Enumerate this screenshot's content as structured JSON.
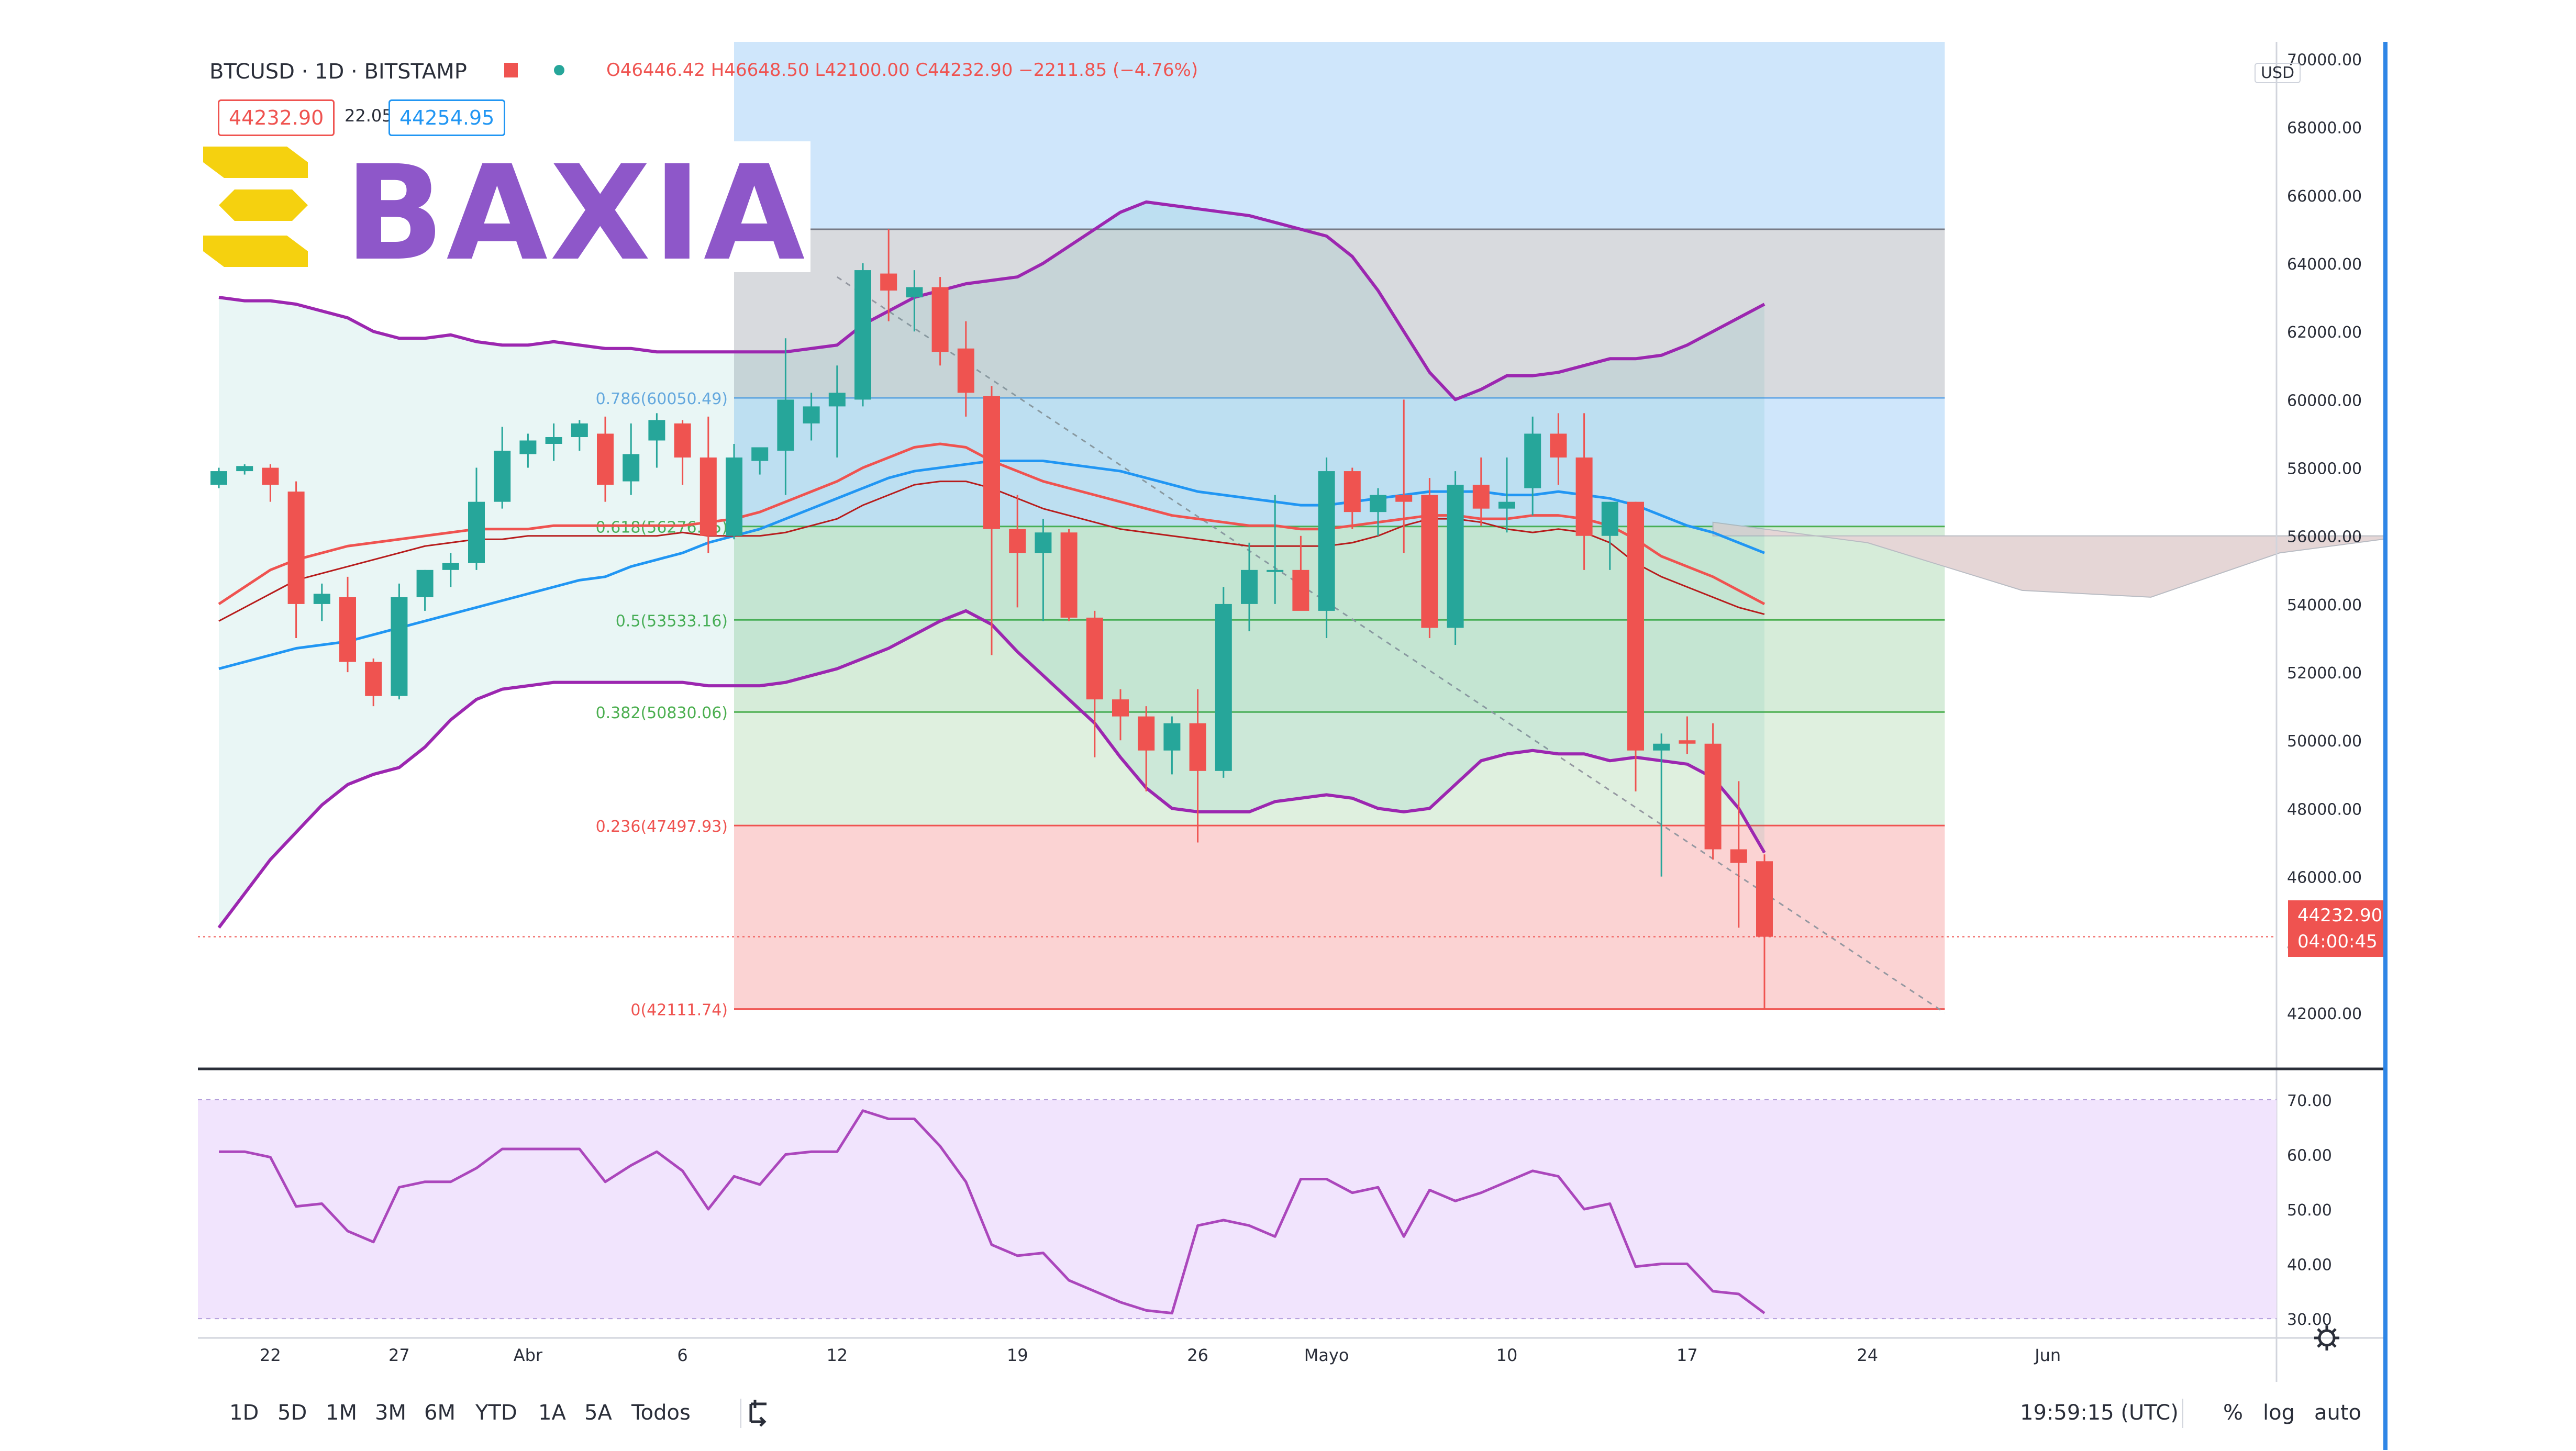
{
  "header": {
    "symbol": "BTCUSD · 1D · BITSTAMP",
    "ohlc": "O46446.42 H46648.50 L42100.00 C44232.90 −2211.85 (−4.76%)",
    "bid": "44232.90",
    "spread": "22.05",
    "ask": "44254.95",
    "currency": "USD"
  },
  "logo": {
    "text": "BAXIA",
    "colors": {
      "mark": "#f5d10f",
      "text": "#8e57c9"
    }
  },
  "price_badge": {
    "price": "44232.90",
    "countdown": "04:00:45"
  },
  "fib_labels": [
    "0.786(60050.49)",
    "0.618(56276.25)",
    "0.5(53533.16)",
    "0.382(50830.06)",
    "0.236(47497.93)",
    "0(42111.74)"
  ],
  "toolbar": {
    "ranges": [
      "1D",
      "5D",
      "1M",
      "3M",
      "6M",
      "YTD",
      "1A",
      "5A",
      "Todos"
    ],
    "clock": "19:59:15 (UTC)",
    "percent": "%",
    "log": "log",
    "auto": "auto"
  },
  "chart_data": [
    {
      "type": "candlestick",
      "title": "BTCUSD · 1D · BITSTAMP",
      "x_tick_labels": [
        "22",
        "27",
        "Abr",
        "6",
        "12",
        "19",
        "26",
        "Mayo",
        "10",
        "17",
        "24",
        "Jun"
      ],
      "y_tick_labels": [
        "70000.00",
        "68000.00",
        "66000.00",
        "64000.00",
        "62000.00",
        "60000.00",
        "58000.00",
        "56000.00",
        "54000.00",
        "52000.00",
        "50000.00",
        "48000.00",
        "46000.00",
        "44000.00",
        "42000.00"
      ],
      "ylim": [
        41000,
        70500
      ],
      "candles": [
        [
          57500,
          58000,
          57400,
          57900
        ],
        [
          57900,
          58100,
          57800,
          58050
        ],
        [
          58000,
          58100,
          57000,
          57500
        ],
        [
          57300,
          57600,
          53000,
          54000
        ],
        [
          54000,
          54600,
          53500,
          54300
        ],
        [
          54200,
          54800,
          52000,
          52300
        ],
        [
          52300,
          52400,
          51000,
          51300
        ],
        [
          51300,
          54600,
          51200,
          54200
        ],
        [
          54200,
          55000,
          53800,
          55000
        ],
        [
          55000,
          55500,
          54500,
          55200
        ],
        [
          55200,
          58000,
          55000,
          57000
        ],
        [
          57000,
          59200,
          56800,
          58500
        ],
        [
          58400,
          59000,
          58000,
          58800
        ],
        [
          58700,
          59300,
          58200,
          58900
        ],
        [
          58900,
          59400,
          58500,
          59300
        ],
        [
          59000,
          59500,
          57000,
          57500
        ],
        [
          57600,
          59300,
          57200,
          58400
        ],
        [
          58800,
          59600,
          58000,
          59400
        ],
        [
          59300,
          59400,
          57500,
          58300
        ],
        [
          58300,
          59500,
          55500,
          56000
        ],
        [
          56000,
          58700,
          55900,
          58300
        ],
        [
          58200,
          58600,
          57800,
          58600
        ],
        [
          58500,
          61800,
          57200,
          60000
        ],
        [
          59300,
          60200,
          58800,
          59800
        ],
        [
          59800,
          61000,
          58300,
          60200
        ],
        [
          60000,
          64000,
          59800,
          63800
        ],
        [
          63700,
          65000,
          62300,
          63200
        ],
        [
          63000,
          63800,
          62000,
          63300
        ],
        [
          63300,
          63600,
          61000,
          61400
        ],
        [
          61500,
          62300,
          59500,
          60200
        ],
        [
          60100,
          60400,
          52500,
          56200
        ],
        [
          56200,
          57200,
          53900,
          55500
        ],
        [
          55500,
          56500,
          53500,
          56100
        ],
        [
          56100,
          56200,
          53500,
          53600
        ],
        [
          53600,
          53800,
          49500,
          51200
        ],
        [
          51200,
          51500,
          50000,
          50700
        ],
        [
          50700,
          51000,
          48500,
          49700
        ],
        [
          49700,
          50700,
          49000,
          50500
        ],
        [
          50500,
          51500,
          47000,
          49100
        ],
        [
          49100,
          54500,
          48900,
          54000
        ],
        [
          54000,
          55800,
          53200,
          55000
        ],
        [
          55000,
          57200,
          54000,
          55000
        ],
        [
          55000,
          56000,
          54000,
          53800
        ],
        [
          53800,
          58300,
          53000,
          57900
        ],
        [
          57900,
          58000,
          56200,
          56700
        ],
        [
          56700,
          57400,
          56000,
          57200
        ],
        [
          57200,
          60000,
          55500,
          57000
        ],
        [
          57200,
          57700,
          53000,
          53300
        ],
        [
          53300,
          57900,
          52800,
          57500
        ],
        [
          57500,
          58300,
          56300,
          56800
        ],
        [
          56800,
          58300,
          56100,
          57000
        ],
        [
          57400,
          59500,
          56600,
          59000
        ],
        [
          59000,
          59600,
          57500,
          58300
        ],
        [
          58300,
          59600,
          55000,
          56000
        ],
        [
          56000,
          57000,
          55000,
          57000
        ],
        [
          57000,
          57000,
          48500,
          49700
        ],
        [
          49700,
          50200,
          46000,
          49900
        ],
        [
          50000,
          50700,
          49600,
          49900
        ],
        [
          49900,
          50500,
          46500,
          46800
        ],
        [
          46800,
          48800,
          44500,
          46400
        ],
        [
          46450,
          46650,
          42100,
          44233
        ]
      ],
      "fibonacci": {
        "levels": [
          {
            "label": "0.786(60050.49)",
            "price": 60050.49,
            "color": "#6ba9e6"
          },
          {
            "label": "0.618(56276.25)",
            "price": 56276.25,
            "color": "#4caf50"
          },
          {
            "label": "0.5(53533.16)",
            "price": 53533.16,
            "color": "#4caf50"
          },
          {
            "label": "0.382(50830.06)",
            "price": 50830.06,
            "color": "#4caf50"
          },
          {
            "label": "0.236(47497.93)",
            "price": 47497.93,
            "color": "#ef5350"
          },
          {
            "label": "0(42111.74)",
            "price": 42111.74,
            "color": "#ef5350"
          }
        ],
        "top": 65000,
        "sky_top": 70500
      },
      "bollinger": {
        "upper": [
          63000,
          62900,
          62900,
          62800,
          62600,
          62400,
          62000,
          61800,
          61800,
          61900,
          61700,
          61600,
          61600,
          61700,
          61600,
          61500,
          61500,
          61400,
          61400,
          61400,
          61400,
          61400,
          61400,
          61500,
          61600,
          62200,
          62600,
          63000,
          63200,
          63400,
          63500,
          63600,
          64000,
          64500,
          65000,
          65500,
          65800,
          65700,
          65600,
          65500,
          65400,
          65200,
          65000,
          64800,
          64200,
          63200,
          62000,
          60800,
          60000,
          60300,
          60700,
          60700,
          60800,
          61000,
          61200,
          61200,
          61300,
          61600,
          62000,
          62400,
          62800
        ],
        "middle": [
          54000,
          54500,
          55000,
          55300,
          55500,
          55700,
          55800,
          55900,
          56000,
          56100,
          56200,
          56200,
          56200,
          56300,
          56300,
          56300,
          56300,
          56300,
          56300,
          56400,
          56500,
          56700,
          57000,
          57300,
          57600,
          58000,
          58300,
          58600,
          58700,
          58600,
          58200,
          57900,
          57600,
          57400,
          57200,
          57000,
          56800,
          56600,
          56500,
          56400,
          56300,
          56300,
          56200,
          56200,
          56300,
          56400,
          56500,
          56600,
          56600,
          56500,
          56500,
          56600,
          56600,
          56500,
          56300,
          55900,
          55400,
          55100,
          54800,
          54400,
          54000
        ],
        "lower": [
          44500,
          45500,
          46500,
          47300,
          48100,
          48700,
          49000,
          49200,
          49800,
          50600,
          51200,
          51500,
          51600,
          51700,
          51700,
          51700,
          51700,
          51700,
          51700,
          51600,
          51600,
          51600,
          51700,
          51900,
          52100,
          52400,
          52700,
          53100,
          53500,
          53800,
          53400,
          52600,
          51900,
          51200,
          50500,
          49500,
          48600,
          48000,
          47900,
          47900,
          47900,
          48200,
          48300,
          48400,
          48300,
          48000,
          47900,
          48000,
          48700,
          49400,
          49600,
          49700,
          49600,
          49600,
          49400,
          49500,
          49400,
          49300,
          48900,
          48000,
          46700
        ]
      },
      "ema_blue": [
        52100,
        52300,
        52500,
        52700,
        52800,
        52900,
        53100,
        53300,
        53500,
        53700,
        53900,
        54100,
        54300,
        54500,
        54700,
        54800,
        55100,
        55300,
        55500,
        55800,
        56000,
        56200,
        56500,
        56800,
        57100,
        57400,
        57700,
        57900,
        58000,
        58100,
        58200,
        58200,
        58200,
        58100,
        58000,
        57900,
        57700,
        57500,
        57300,
        57200,
        57100,
        57000,
        56900,
        56900,
        57000,
        57100,
        57200,
        57300,
        57300,
        57300,
        57200,
        57200,
        57300,
        57200,
        57100,
        56900,
        56600,
        56300,
        56100,
        55800,
        55500
      ],
      "ema_red": [
        53800,
        54200,
        54600,
        55000,
        55200,
        55400,
        55600,
        55800,
        56000,
        56100,
        56200,
        56200,
        56300,
        56300,
        56300,
        56300,
        56300,
        56300,
        56400,
        56300,
        56300,
        56300,
        56400,
        56600,
        56800,
        57200,
        57500,
        57800,
        57900,
        57900,
        57700,
        57400,
        57100,
        56900,
        56700,
        56500,
        56400,
        56300,
        56200,
        56100,
        56000,
        56000,
        56000,
        56000,
        56100,
        56300,
        56600,
        56800,
        56800,
        56700,
        56500,
        56400,
        56500,
        56400,
        56100,
        55500,
        55100,
        54800,
        54500,
        54200,
        54000
      ],
      "rsi": {
        "type": "line",
        "y_tick_labels": [
          "70.00",
          "60.00",
          "50.00",
          "40.00",
          "30.00"
        ],
        "ylim": [
          28,
          72
        ],
        "values": [
          60.5,
          60.5,
          59.5,
          50.5,
          51,
          46,
          44,
          54,
          55,
          55,
          57.5,
          61,
          61,
          61,
          61,
          55,
          58,
          60.5,
          57,
          50,
          56,
          54.5,
          60,
          60.5,
          60.5,
          68,
          66.5,
          66.5,
          61.5,
          55,
          43.5,
          41.5,
          42,
          37,
          35,
          33,
          31.5,
          31,
          47,
          48,
          47,
          45,
          55.5,
          55.5,
          53,
          54,
          45,
          53.5,
          51.5,
          53,
          55,
          57,
          56,
          50,
          51,
          39.5,
          40,
          40,
          35,
          34.5,
          31
        ]
      }
    }
  ]
}
